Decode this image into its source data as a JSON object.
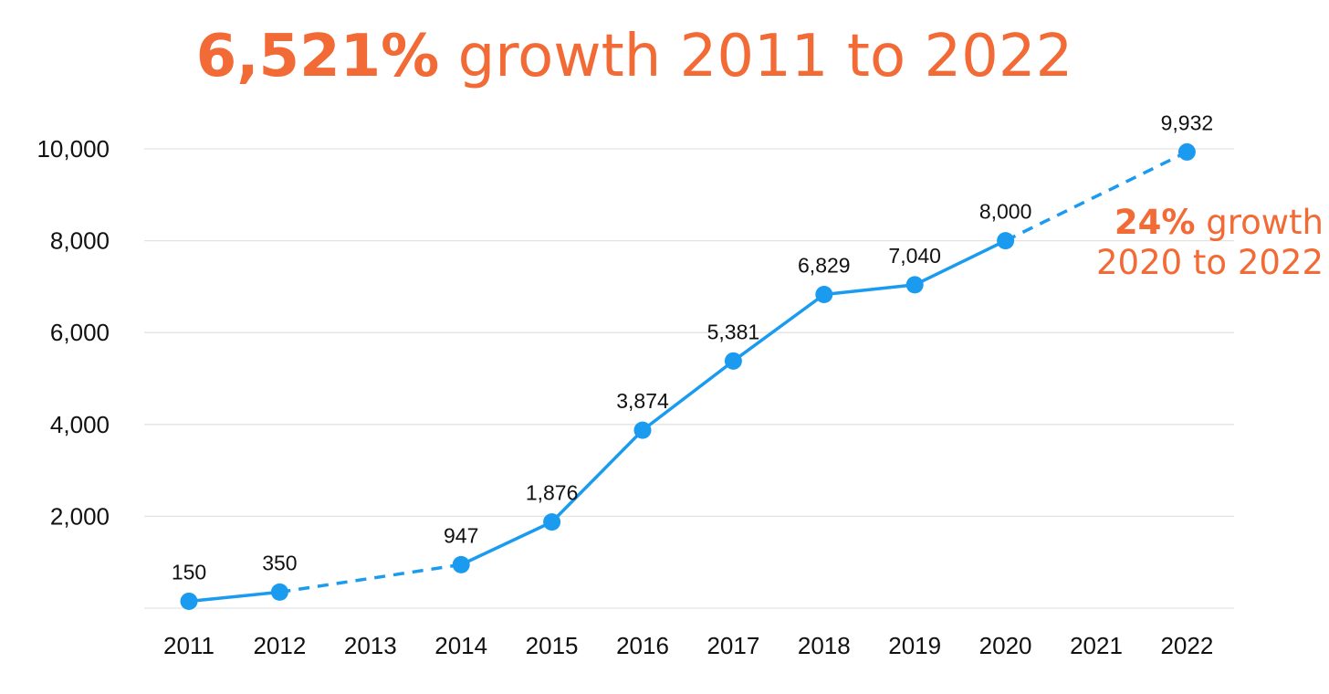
{
  "title": {
    "bold": "6,521%",
    "rest": " growth 2011 to 2022"
  },
  "annotation": {
    "bold": "24%",
    "line1_rest": " growth",
    "line2": "2020 to 2022"
  },
  "colors": {
    "accent": "#f26a35",
    "series": "#1a9bef",
    "grid": "#e3e3e3",
    "text": "#111111"
  },
  "chart_data": {
    "type": "line",
    "title": "6,521% growth 2011 to 2022",
    "xlabel": "",
    "ylabel": "",
    "categories": [
      "2011",
      "2012",
      "2013",
      "2014",
      "2015",
      "2016",
      "2017",
      "2018",
      "2019",
      "2020",
      "2021",
      "2022"
    ],
    "ylim": [
      0,
      10000
    ],
    "yticks": [
      2000,
      4000,
      6000,
      8000,
      10000
    ],
    "ytick_labels": [
      "2,000",
      "4,000",
      "6,000",
      "8,000",
      "10,000"
    ],
    "grid": true,
    "legend": "none",
    "series": [
      {
        "points": [
          {
            "x": "2011",
            "y": 150,
            "label": "150"
          },
          {
            "x": "2012",
            "y": 350,
            "label": "350"
          },
          {
            "x": "2014",
            "y": 947,
            "label": "947"
          },
          {
            "x": "2015",
            "y": 1876,
            "label": "1,876"
          },
          {
            "x": "2016",
            "y": 3874,
            "label": "3,874"
          },
          {
            "x": "2017",
            "y": 5381,
            "label": "5,381"
          },
          {
            "x": "2018",
            "y": 6829,
            "label": "6,829"
          },
          {
            "x": "2019",
            "y": 7040,
            "label": "7,040"
          },
          {
            "x": "2020",
            "y": 8000,
            "label": "8,000"
          },
          {
            "x": "2022",
            "y": 9932,
            "label": "9,932"
          }
        ]
      }
    ]
  }
}
